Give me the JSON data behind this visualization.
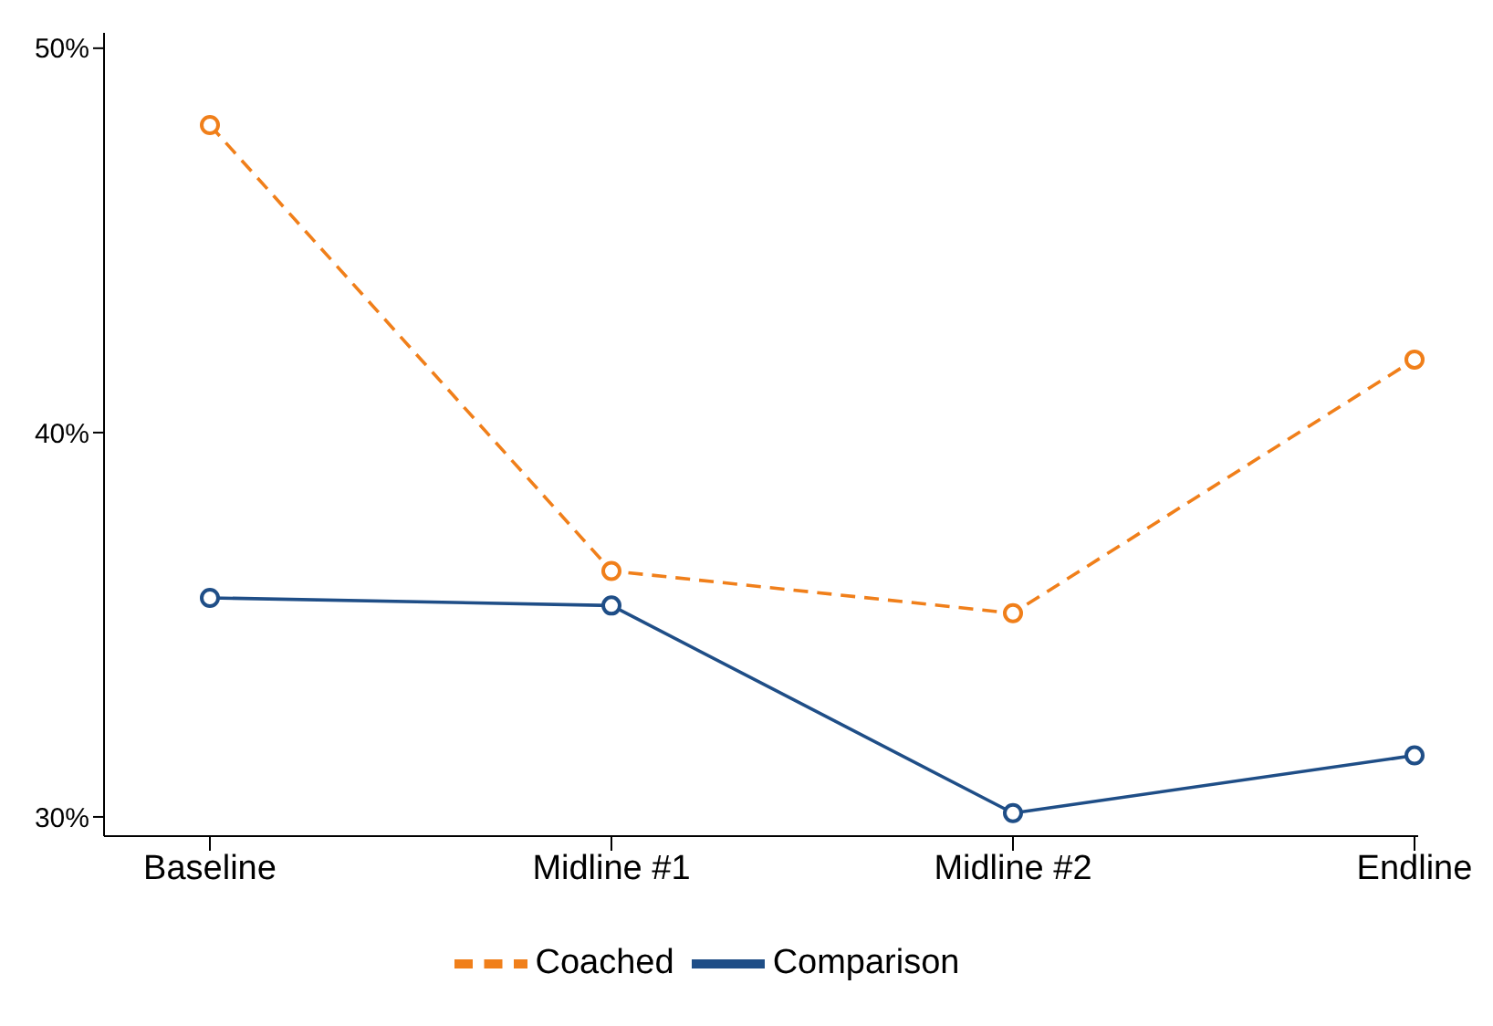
{
  "chart_data": {
    "type": "line",
    "categories": [
      "Baseline",
      "Midline #1",
      "Midline #2",
      "Endline"
    ],
    "series": [
      {
        "name": "Coached",
        "color": "#f07f1a",
        "values": [
          48.0,
          36.4,
          35.3,
          41.9
        ],
        "line_style": "dashed"
      },
      {
        "name": "Comparison",
        "color": "#1f4e87",
        "values": [
          35.7,
          35.5,
          30.1,
          31.6
        ],
        "line_style": "solid"
      }
    ],
    "ylim": [
      29.5,
      50.4
    ],
    "yticks": [
      {
        "value": 30,
        "label": "30%"
      },
      {
        "value": 40,
        "label": "40%"
      },
      {
        "value": 50,
        "label": "50%"
      }
    ],
    "grid": false,
    "legend": "bottom",
    "marker": "circle"
  }
}
